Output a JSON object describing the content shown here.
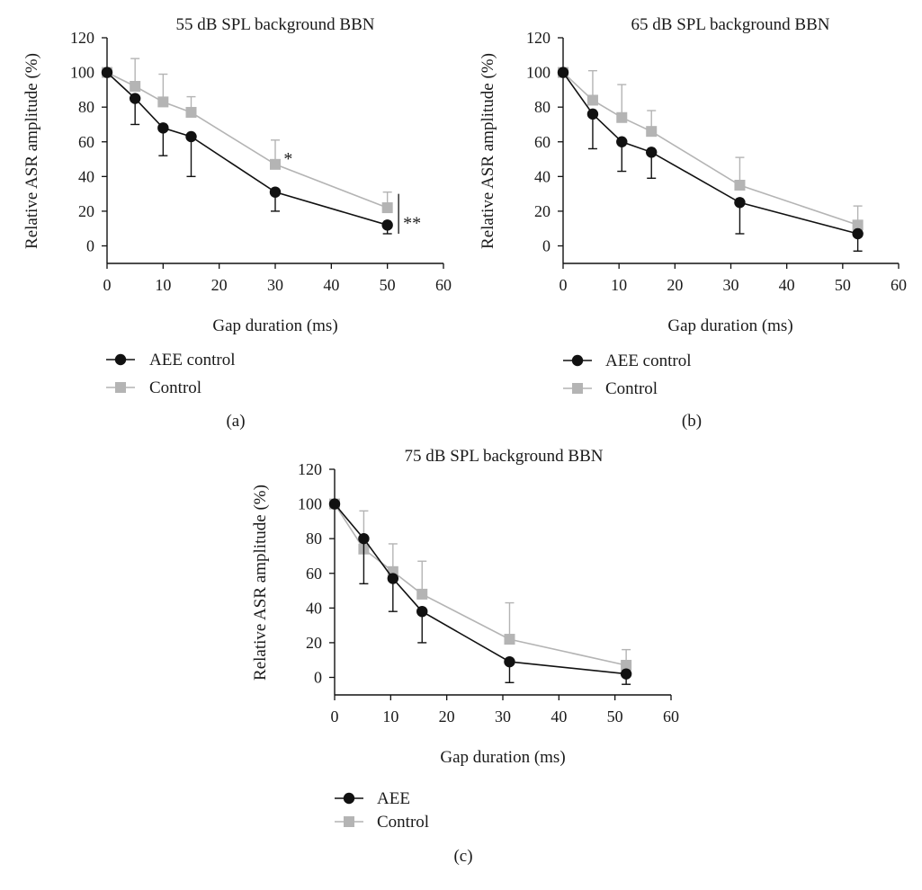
{
  "chart_data": [
    {
      "type": "line",
      "panel_label": "(a)",
      "title": "55 dB SPL background BBN",
      "xlabel": "Gap duration (ms)",
      "ylabel": "Relative ASR amplitude (%)",
      "xlim": [
        0,
        60
      ],
      "ylim": [
        -10,
        120
      ],
      "xticks": [
        0,
        10,
        20,
        30,
        40,
        50,
        60
      ],
      "yticks": [
        0,
        20,
        40,
        60,
        80,
        100,
        120
      ],
      "series": [
        {
          "name": "AEE control",
          "marker": "circle",
          "color": "#111111",
          "x": [
            0,
            5,
            10,
            15,
            30,
            50
          ],
          "y": [
            100,
            85,
            68,
            63,
            31,
            12
          ],
          "err": [
            0,
            15,
            16,
            23,
            11,
            5
          ],
          "err_dir": "down"
        },
        {
          "name": "Control",
          "marker": "square",
          "color": "#b4b4b4",
          "x": [
            0,
            5,
            10,
            15,
            30,
            50
          ],
          "y": [
            100,
            92,
            83,
            77,
            47,
            22
          ],
          "err": [
            0,
            16,
            16,
            9,
            14,
            9
          ],
          "err_dir": "up"
        }
      ],
      "annotations": [
        {
          "text": "*",
          "x": 31.5,
          "y": 51
        },
        {
          "text": "**",
          "x": 52.8,
          "y": 14,
          "bracket": [
            52,
            7,
            30
          ]
        }
      ]
    },
    {
      "type": "line",
      "panel_label": "(b)",
      "title": "65 dB SPL background BBN",
      "xlabel": "Gap duration (ms)",
      "ylabel": "Relative ASR amplitude (%)",
      "xlim": [
        0,
        60
      ],
      "ylim": [
        -10,
        120
      ],
      "xticks": [
        0,
        10,
        20,
        30,
        40,
        50,
        60
      ],
      "yticks": [
        0,
        20,
        40,
        60,
        80,
        100,
        120
      ],
      "series": [
        {
          "name": "AEE control",
          "marker": "circle",
          "color": "#111111",
          "x": [
            0,
            5.3,
            10.5,
            15.8,
            31.6,
            52.7
          ],
          "y": [
            100,
            76,
            60,
            54,
            25,
            7
          ],
          "err": [
            0,
            20,
            17,
            15,
            18,
            10
          ],
          "err_dir": "down"
        },
        {
          "name": "Control",
          "marker": "square",
          "color": "#b4b4b4",
          "x": [
            0,
            5.3,
            10.5,
            15.8,
            31.6,
            52.7
          ],
          "y": [
            100,
            84,
            74,
            66,
            35,
            12
          ],
          "err": [
            0,
            17,
            19,
            12,
            16,
            11
          ],
          "err_dir": "up"
        }
      ],
      "annotations": []
    },
    {
      "type": "line",
      "panel_label": "(c)",
      "title": "75 dB SPL background BBN",
      "xlabel": "Gap duration (ms)",
      "ylabel": "Relative ASR amplitude (%)",
      "xlim": [
        0,
        60
      ],
      "ylim": [
        -10,
        120
      ],
      "xticks": [
        0,
        10,
        20,
        30,
        40,
        50,
        60
      ],
      "yticks": [
        0,
        20,
        40,
        60,
        80,
        100,
        120
      ],
      "series": [
        {
          "name": "AEE",
          "marker": "circle",
          "color": "#111111",
          "x": [
            0,
            5.2,
            10.4,
            15.6,
            31.2,
            52
          ],
          "y": [
            100,
            80,
            57,
            38,
            9,
            2
          ],
          "err": [
            0,
            26,
            19,
            18,
            12,
            6
          ],
          "err_dir": "down"
        },
        {
          "name": "Control",
          "marker": "square",
          "color": "#b4b4b4",
          "x": [
            0,
            5.2,
            10.4,
            15.6,
            31.2,
            52
          ],
          "y": [
            100,
            74,
            61,
            48,
            22,
            7
          ],
          "err": [
            0,
            22,
            16,
            19,
            21,
            9
          ],
          "err_dir": "up"
        }
      ],
      "annotations": []
    }
  ]
}
